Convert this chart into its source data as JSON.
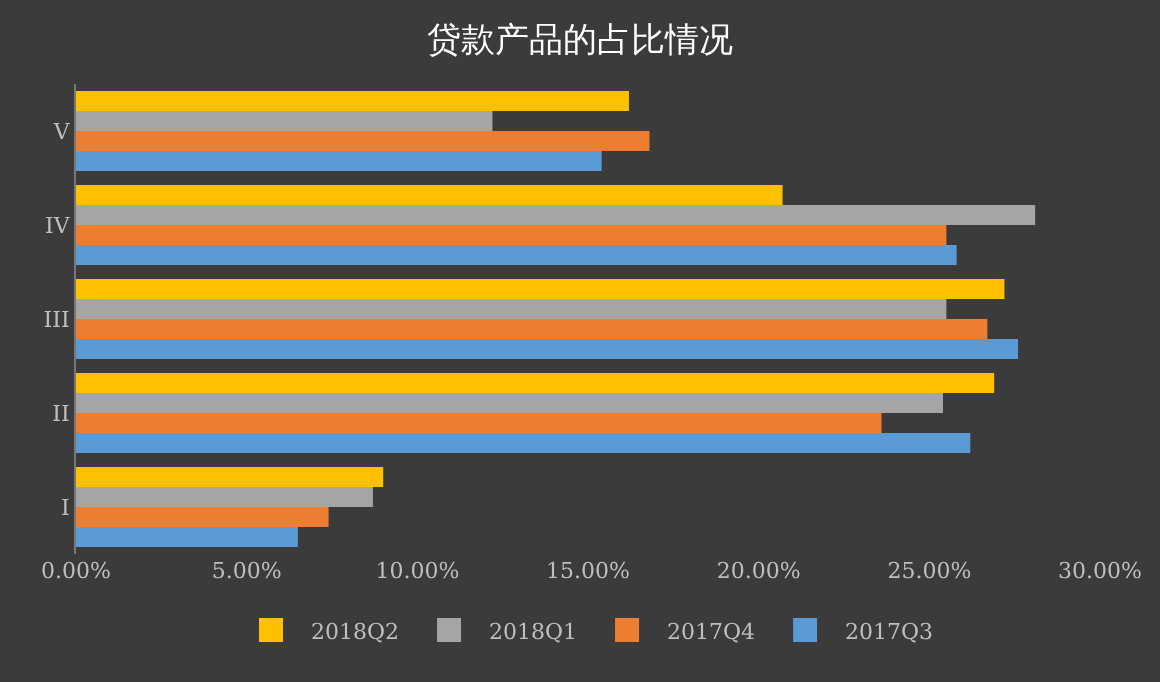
{
  "chart_data": {
    "type": "bar",
    "orientation": "horizontal",
    "title": "贷款产品的占比情况",
    "categories": [
      "V",
      "IV",
      "III",
      "II",
      "I"
    ],
    "series": [
      {
        "name": "2018Q2",
        "color": "#ffc000",
        "values": [
          16.2,
          20.7,
          27.2,
          26.9,
          9.0
        ]
      },
      {
        "name": "2018Q1",
        "color": "#a5a5a5",
        "values": [
          12.2,
          28.1,
          25.5,
          25.4,
          8.7
        ]
      },
      {
        "name": "2017Q4",
        "color": "#ed7d31",
        "values": [
          16.8,
          25.5,
          26.7,
          23.6,
          7.4
        ]
      },
      {
        "name": "2017Q3",
        "color": "#5b9bd5",
        "values": [
          15.4,
          25.8,
          27.6,
          26.2,
          6.5
        ]
      }
    ],
    "xlim": [
      0,
      30
    ],
    "xticks": [
      {
        "value": 0,
        "label": "0.00%"
      },
      {
        "value": 5,
        "label": "5.00%"
      },
      {
        "value": 10,
        "label": "10.00%"
      },
      {
        "value": 15,
        "label": "15.00%"
      },
      {
        "value": 20,
        "label": "20.00%"
      },
      {
        "value": 25,
        "label": "25.00%"
      },
      {
        "value": 30,
        "label": "30.00%"
      }
    ],
    "grid": false,
    "legend": "bottom"
  }
}
